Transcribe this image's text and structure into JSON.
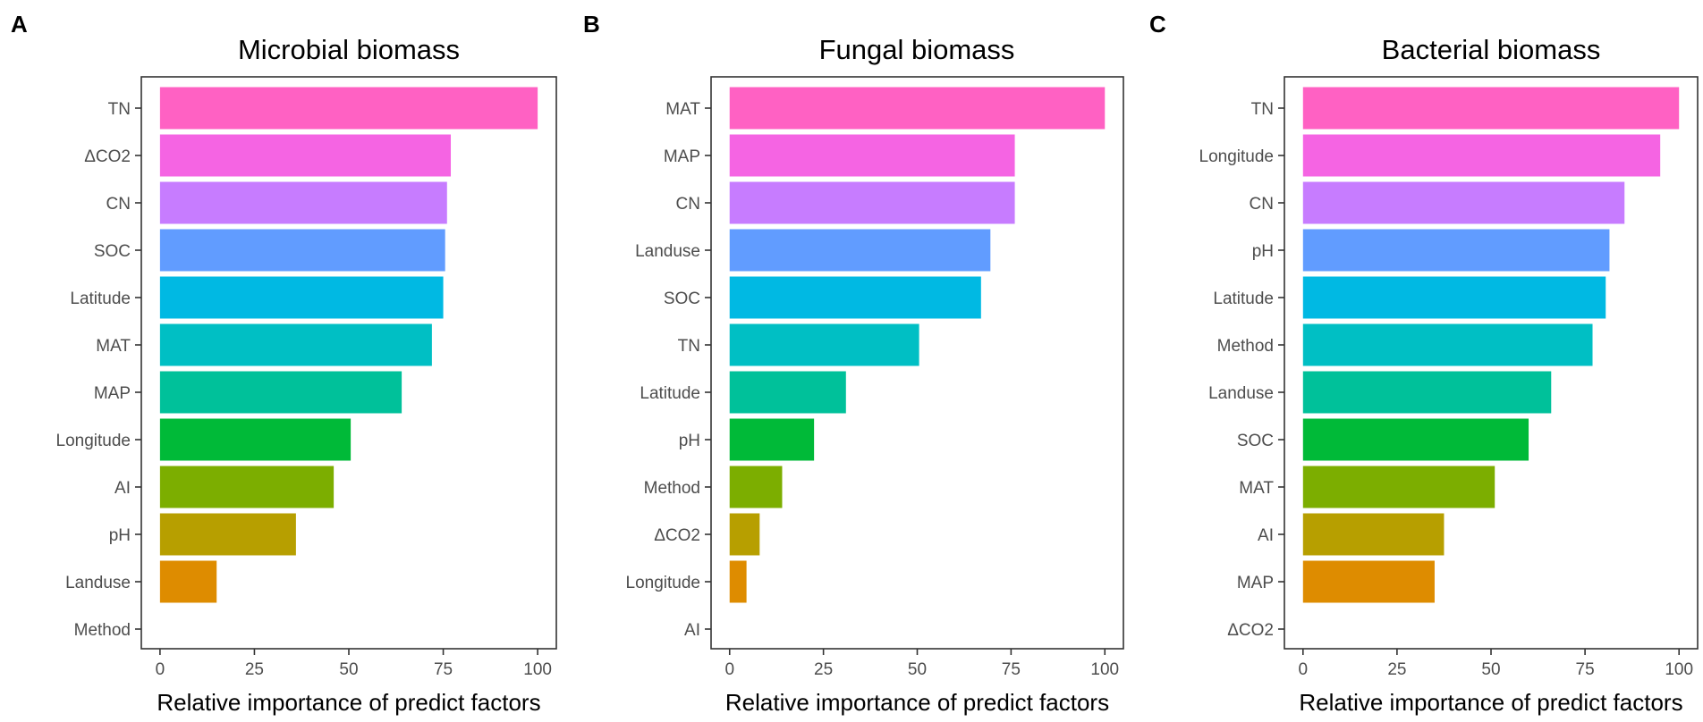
{
  "chart_data": [
    {
      "type": "bar",
      "orientation": "horizontal",
      "panel_label": "A",
      "title": "Microbial biomass",
      "xlabel": "Relative importance of predict factors",
      "ylabel": "",
      "xlim": [
        0,
        100
      ],
      "xticks": [
        0,
        25,
        50,
        75,
        100
      ],
      "grid": false,
      "legend": "none",
      "categories": [
        "TN",
        "ΔCO2",
        "CN",
        "SOC",
        "Latitude",
        "MAT",
        "MAP",
        "Longitude",
        "AI",
        "pH",
        "Landuse",
        "Method"
      ],
      "values": [
        100,
        77,
        76,
        75.5,
        75,
        72,
        64,
        50.5,
        46,
        36,
        15,
        0
      ],
      "colors": [
        "#FF61C3",
        "#F564E3",
        "#C77CFF",
        "#619CFF",
        "#00B9E3",
        "#00BFC4",
        "#00C19A",
        "#00BA38",
        "#7CAE00",
        "#B79F00",
        "#DE8C00",
        "#F8766D"
      ]
    },
    {
      "type": "bar",
      "orientation": "horizontal",
      "panel_label": "B",
      "title": "Fungal biomass",
      "xlabel": "Relative importance of predict factors",
      "ylabel": "",
      "xlim": [
        0,
        100
      ],
      "xticks": [
        0,
        25,
        50,
        75,
        100
      ],
      "grid": false,
      "legend": "none",
      "categories": [
        "MAT",
        "MAP",
        "CN",
        "Landuse",
        "SOC",
        "TN",
        "Latitude",
        "pH",
        "Method",
        "ΔCO2",
        "Longitude",
        "AI"
      ],
      "values": [
        100,
        76,
        76,
        69.5,
        67,
        50.5,
        31,
        22.5,
        14,
        8,
        4.5,
        0
      ],
      "colors": [
        "#FF61C3",
        "#F564E3",
        "#C77CFF",
        "#619CFF",
        "#00B9E3",
        "#00BFC4",
        "#00C19A",
        "#00BA38",
        "#7CAE00",
        "#B79F00",
        "#DE8C00",
        "#F8766D"
      ]
    },
    {
      "type": "bar",
      "orientation": "horizontal",
      "panel_label": "C",
      "title": "Bacterial biomass",
      "xlabel": "Relative importance of predict factors",
      "ylabel": "",
      "xlim": [
        0,
        100
      ],
      "xticks": [
        0,
        25,
        50,
        75,
        100
      ],
      "grid": false,
      "legend": "none",
      "categories": [
        "TN",
        "Longitude",
        "CN",
        "pH",
        "Latitude",
        "Method",
        "Landuse",
        "SOC",
        "MAT",
        "AI",
        "MAP",
        "ΔCO2"
      ],
      "values": [
        100,
        95,
        85.5,
        81.5,
        80.5,
        77,
        66,
        60,
        51,
        37.5,
        35,
        0
      ],
      "colors": [
        "#FF61C3",
        "#F564E3",
        "#C77CFF",
        "#619CFF",
        "#00B9E3",
        "#00BFC4",
        "#00C19A",
        "#00BA38",
        "#7CAE00",
        "#B79F00",
        "#DE8C00",
        "#F8766D"
      ]
    }
  ]
}
